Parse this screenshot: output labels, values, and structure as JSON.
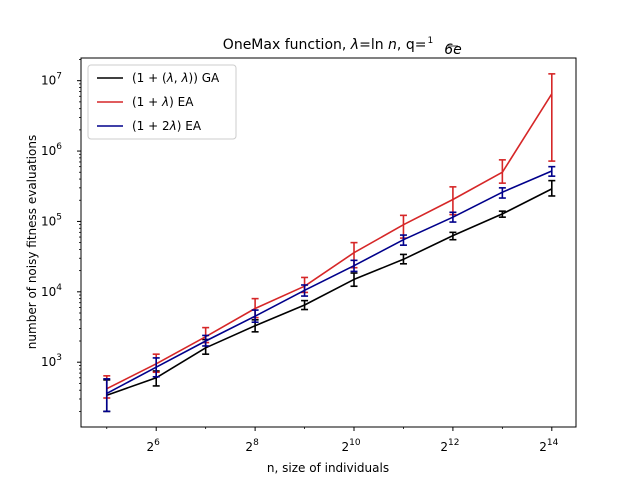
{
  "chart_data": {
    "type": "line",
    "title": "OneMax function, λ=ln n, q=1/(6e)",
    "title_parts": {
      "main": "OneMax function, ",
      "lambda": "λ",
      "eq_ln": "=ln ",
      "n": "n",
      "q": ", q=",
      "frac_num": "1",
      "frac_den": "6e"
    },
    "xlabel": "n, size of individuals",
    "ylabel": "number of noisy fitness evaluations",
    "x_scale": "log2",
    "y_scale": "log10",
    "xlim": [
      22.3,
      23000
    ],
    "ylim": [
      120,
      21000000
    ],
    "x_ticks": [
      64,
      256,
      1024,
      4096,
      16384
    ],
    "x_tick_labels": [
      "2",
      "2",
      "2",
      "2",
      "2"
    ],
    "x_tick_exponents": [
      "6",
      "8",
      "10",
      "12",
      "14"
    ],
    "y_ticks": [
      1000,
      10000,
      100000,
      1000000,
      10000000
    ],
    "y_tick_labels": [
      "10",
      "10",
      "10",
      "10",
      "10"
    ],
    "y_tick_exponents": [
      "3",
      "4",
      "5",
      "6",
      "7"
    ],
    "legend_position": "top-left",
    "x": [
      32,
      64,
      128,
      256,
      512,
      1024,
      2048,
      4096,
      8192,
      16384
    ],
    "series": [
      {
        "name": "(1 + (λ, λ)) GA",
        "name_parts": [
          "(1 + (",
          "λ",
          ", ",
          "λ",
          ")) GA"
        ],
        "color": "#000000",
        "values": [
          340,
          600,
          1600,
          3300,
          6500,
          15000,
          29000,
          63000,
          128000,
          290000
        ],
        "err_low": [
          200,
          460,
          1300,
          2700,
          5600,
          12000,
          25000,
          55000,
          115000,
          230000
        ],
        "err_high": [
          560,
          750,
          2100,
          4000,
          7500,
          18500,
          34000,
          70000,
          140000,
          380000
        ]
      },
      {
        "name": "(1 + λ) EA",
        "name_parts": [
          "(1 + ",
          "λ",
          ") EA"
        ],
        "color": "#d62728",
        "values": [
          420,
          950,
          2300,
          5800,
          12000,
          36000,
          90000,
          205000,
          500000,
          6500000
        ],
        "err_low": [
          310,
          720,
          1900,
          4300,
          9800,
          22000,
          58000,
          125000,
          350000,
          720000
        ],
        "err_high": [
          640,
          1300,
          3100,
          8000,
          16000,
          50000,
          122000,
          310000,
          750000,
          12500000
        ]
      },
      {
        "name": "(1 + 2λ) EA",
        "name_parts": [
          "(1 + 2",
          "λ",
          ") EA"
        ],
        "color": "#00008b",
        "values": [
          360,
          850,
          2000,
          4500,
          10500,
          23500,
          55000,
          115000,
          260000,
          520000
        ],
        "err_low": [
          200,
          620,
          1700,
          3700,
          8700,
          19500,
          46000,
          98000,
          215000,
          440000
        ],
        "err_high": [
          580,
          1150,
          2400,
          5500,
          12500,
          28000,
          64000,
          135000,
          300000,
          600000
        ]
      }
    ]
  }
}
